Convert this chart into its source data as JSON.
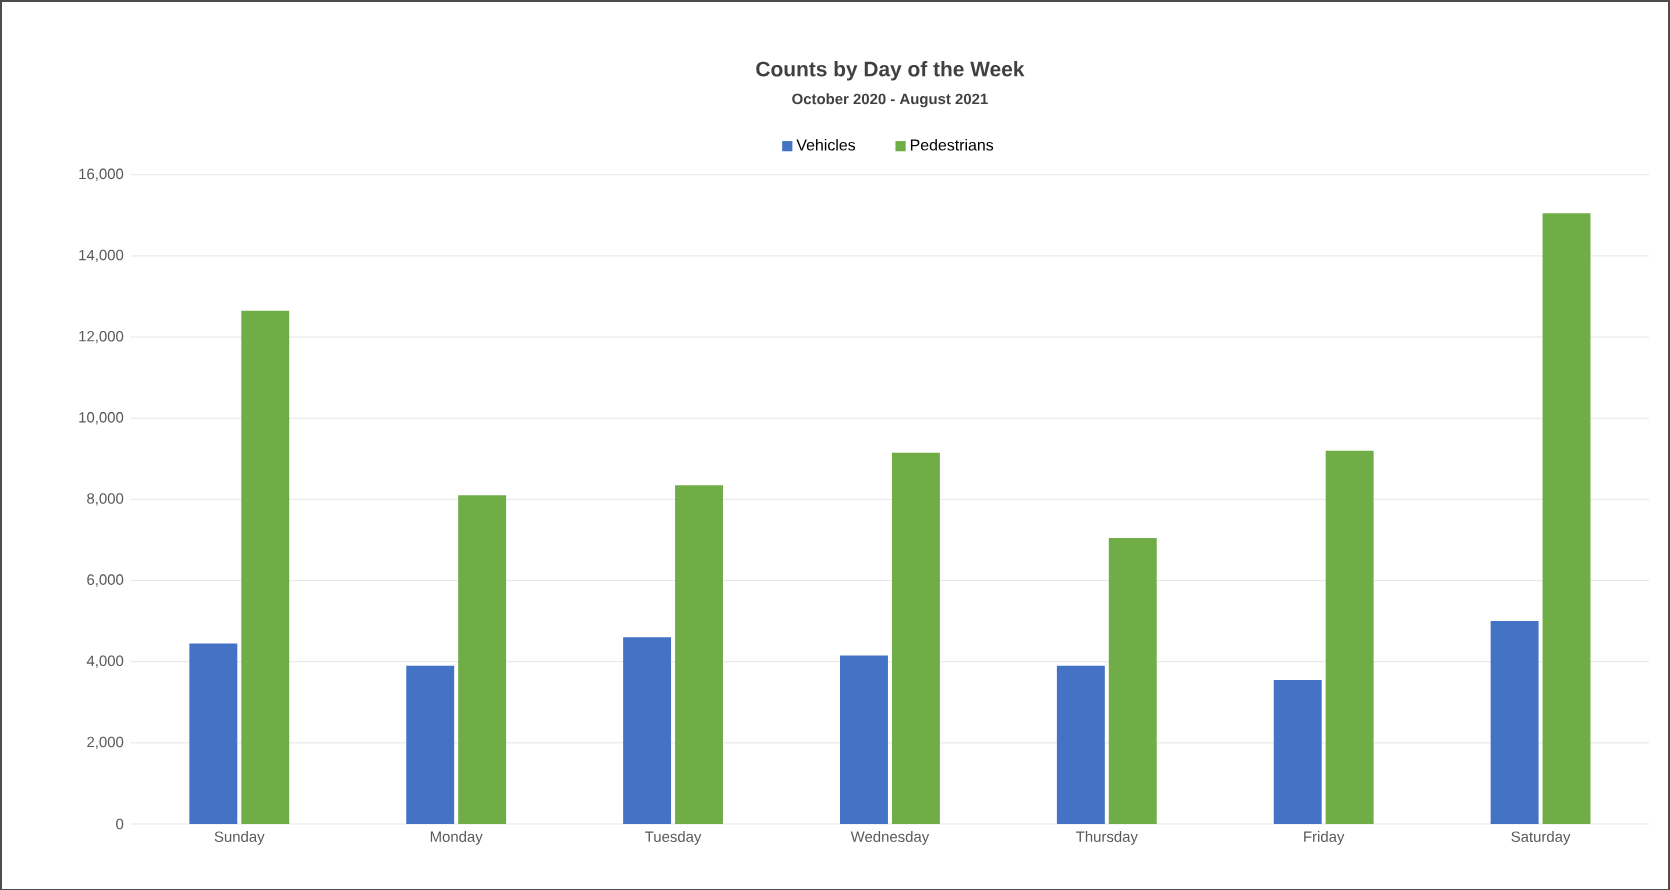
{
  "chart_data": {
    "type": "bar",
    "title": "Counts by Day of the Week",
    "subtitle": "October 2020 - August 2021",
    "categories": [
      "Sunday",
      "Monday",
      "Tuesday",
      "Wednesday",
      "Thursday",
      "Friday",
      "Saturday"
    ],
    "series": [
      {
        "name": "Vehicles",
        "color": "#4472c4",
        "values": [
          4450,
          3900,
          4600,
          4150,
          3900,
          3550,
          5000
        ]
      },
      {
        "name": "Pedestrians",
        "color": "#70ad47",
        "values": [
          12650,
          8100,
          8350,
          9150,
          7050,
          9200,
          15050
        ]
      }
    ],
    "ylim": [
      0,
      16000
    ],
    "yticks": [
      {
        "value": 0,
        "label": "0"
      },
      {
        "value": 2000,
        "label": "2,000"
      },
      {
        "value": 4000,
        "label": "4,000"
      },
      {
        "value": 6000,
        "label": "6,000"
      },
      {
        "value": 8000,
        "label": "8,000"
      },
      {
        "value": 10000,
        "label": "10,000"
      },
      {
        "value": 12000,
        "label": "12,000"
      },
      {
        "value": 14000,
        "label": "14,000"
      },
      {
        "value": 16000,
        "label": "16,000"
      }
    ],
    "grid": "y",
    "legend": "top"
  }
}
